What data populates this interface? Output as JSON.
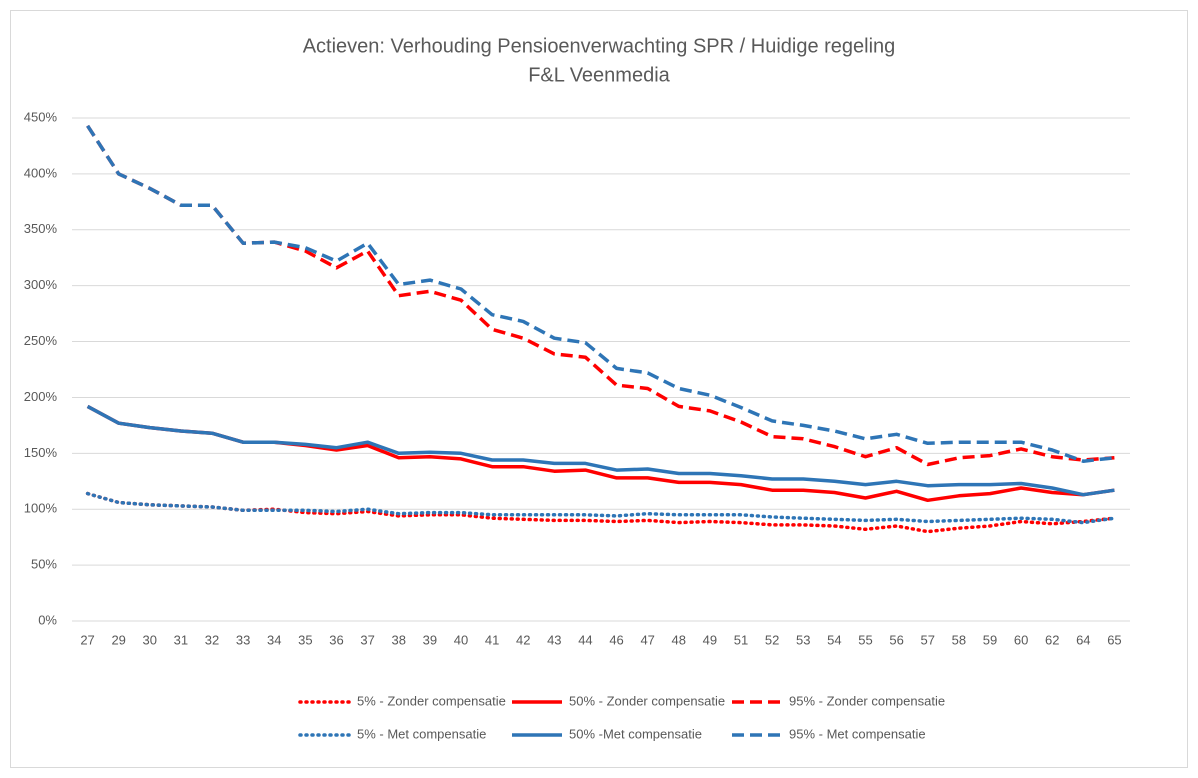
{
  "chart_data": {
    "type": "line",
    "title": "Actieven: Verhouding Pensioenverwachting SPR / Huidige regeling",
    "subtitle": "F&L Veenmedia",
    "categories": [
      "27",
      "29",
      "30",
      "31",
      "32",
      "33",
      "34",
      "35",
      "36",
      "37",
      "38",
      "39",
      "40",
      "41",
      "42",
      "43",
      "44",
      "46",
      "47",
      "48",
      "49",
      "51",
      "52",
      "53",
      "54",
      "55",
      "56",
      "57",
      "58",
      "59",
      "60",
      "62",
      "64",
      "65"
    ],
    "series": [
      {
        "name": "5% - Zonder compensatie",
        "color": "#ff0000",
        "dash": "dotted",
        "values": [
          114,
          106,
          104,
          103,
          102,
          99,
          100,
          97,
          96,
          98,
          94,
          95,
          95,
          92,
          91,
          90,
          90,
          89,
          90,
          88,
          89,
          88,
          86,
          86,
          85,
          82,
          85,
          80,
          83,
          85,
          89,
          87,
          89,
          92
        ]
      },
      {
        "name": "50% - Zonder compensatie",
        "color": "#ff0000",
        "dash": "solid",
        "values": [
          192,
          177,
          173,
          170,
          168,
          160,
          160,
          157,
          153,
          157,
          146,
          147,
          145,
          138,
          138,
          134,
          135,
          128,
          128,
          124,
          124,
          122,
          117,
          117,
          115,
          110,
          116,
          108,
          112,
          114,
          119,
          115,
          113,
          117
        ]
      },
      {
        "name": "95% - Zonder compensatie",
        "color": "#ff0000",
        "dash": "dashed",
        "values": [
          443,
          400,
          387,
          372,
          372,
          338,
          339,
          331,
          316,
          331,
          291,
          295,
          287,
          261,
          253,
          239,
          236,
          211,
          208,
          192,
          188,
          178,
          165,
          163,
          156,
          147,
          155,
          140,
          146,
          148,
          154,
          147,
          144,
          146
        ]
      },
      {
        "name": "5% - Met compensatie",
        "color": "#2e75b6",
        "dash": "dotted",
        "values": [
          114,
          106,
          104,
          103,
          102,
          99,
          99,
          99,
          98,
          100,
          96,
          97,
          97,
          95,
          95,
          95,
          95,
          94,
          96,
          95,
          95,
          95,
          93,
          92,
          91,
          90,
          91,
          89,
          90,
          91,
          92,
          91,
          88,
          92
        ]
      },
      {
        "name": "50% -Met compensatie",
        "color": "#2e75b6",
        "dash": "solid",
        "values": [
          192,
          177,
          173,
          170,
          168,
          160,
          160,
          158,
          155,
          160,
          150,
          151,
          150,
          144,
          144,
          141,
          141,
          135,
          136,
          132,
          132,
          130,
          127,
          127,
          125,
          122,
          125,
          121,
          122,
          122,
          123,
          119,
          113,
          117
        ]
      },
      {
        "name": "95% - Met compensatie",
        "color": "#2e75b6",
        "dash": "dashed",
        "values": [
          443,
          400,
          387,
          372,
          372,
          338,
          339,
          334,
          322,
          338,
          301,
          305,
          297,
          274,
          268,
          253,
          249,
          226,
          222,
          208,
          202,
          191,
          179,
          175,
          170,
          163,
          167,
          159,
          160,
          160,
          160,
          153,
          143,
          146
        ]
      }
    ],
    "ylim": [
      0,
      450
    ],
    "yticks": [
      {
        "value": 0,
        "label": "0%"
      },
      {
        "value": 50,
        "label": "50%"
      },
      {
        "value": 100,
        "label": "100%"
      },
      {
        "value": 150,
        "label": "150%"
      },
      {
        "value": 200,
        "label": "200%"
      },
      {
        "value": 250,
        "label": "250%"
      },
      {
        "value": 300,
        "label": "300%"
      },
      {
        "value": 350,
        "label": "350%"
      },
      {
        "value": 400,
        "label": "400%"
      },
      {
        "value": 450,
        "label": "450%"
      }
    ],
    "grid": true,
    "legend": "bottom"
  }
}
